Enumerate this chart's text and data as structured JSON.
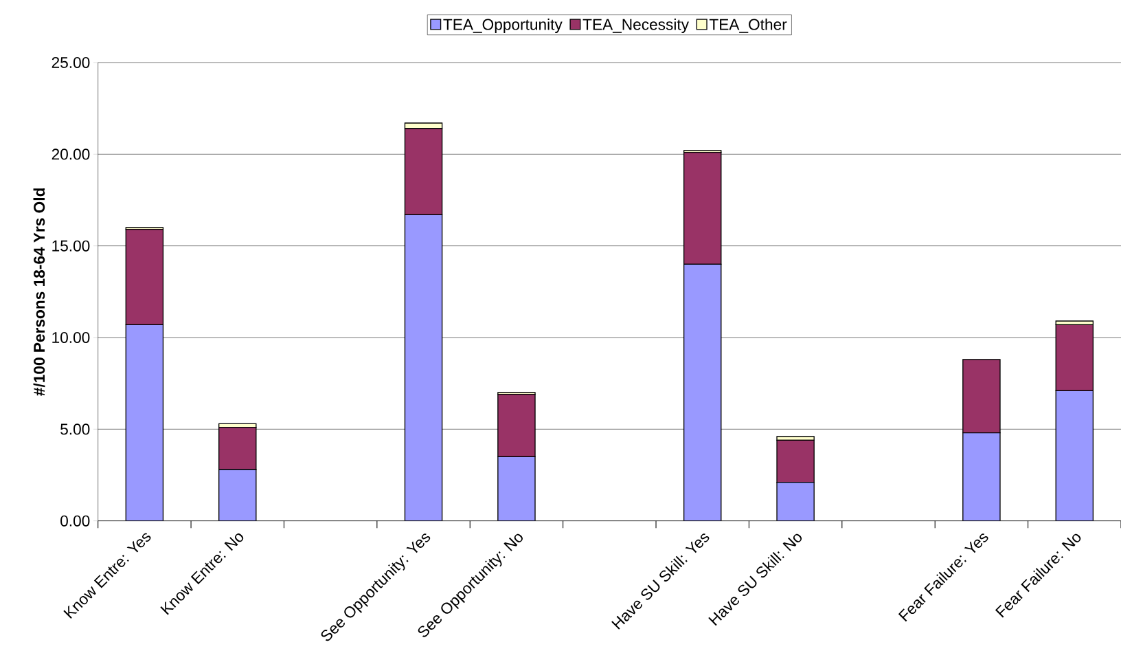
{
  "chart_data": {
    "type": "bar",
    "stacked": true,
    "ylabel": "#/100 Persons 18-64 Yrs Old",
    "categories": [
      "Know Entre: Yes",
      "Know Entre: No",
      null,
      "See Opportunity: Yes",
      "See Opportunity: No",
      null,
      "Have SU Skill: Yes",
      "Have SU Skill: No",
      null,
      "Fear Failure: Yes",
      "Fear Failure: No"
    ],
    "series": [
      {
        "name": "TEA_Opportunity",
        "color": "#9999ff",
        "values": [
          10.7,
          2.8,
          null,
          16.7,
          3.5,
          null,
          14.0,
          2.1,
          null,
          4.8,
          7.1
        ]
      },
      {
        "name": "TEA_Necessity",
        "color": "#993366",
        "values": [
          5.2,
          2.3,
          null,
          4.7,
          3.4,
          null,
          6.1,
          2.3,
          null,
          4.0,
          3.6
        ]
      },
      {
        "name": "TEA_Other",
        "color": "#ffffcc",
        "values": [
          0.1,
          0.2,
          null,
          0.3,
          0.1,
          null,
          0.1,
          0.2,
          null,
          0.0,
          0.2
        ]
      }
    ],
    "ylim": [
      0,
      25
    ],
    "yticks": [
      {
        "value": 0,
        "label": "0.00"
      },
      {
        "value": 5,
        "label": "5.00"
      },
      {
        "value": 10,
        "label": "10.00"
      },
      {
        "value": 15,
        "label": "15.00"
      },
      {
        "value": 20,
        "label": "20.00"
      },
      {
        "value": 25,
        "label": "25.00"
      }
    ],
    "grid": "y",
    "legend": "top"
  }
}
